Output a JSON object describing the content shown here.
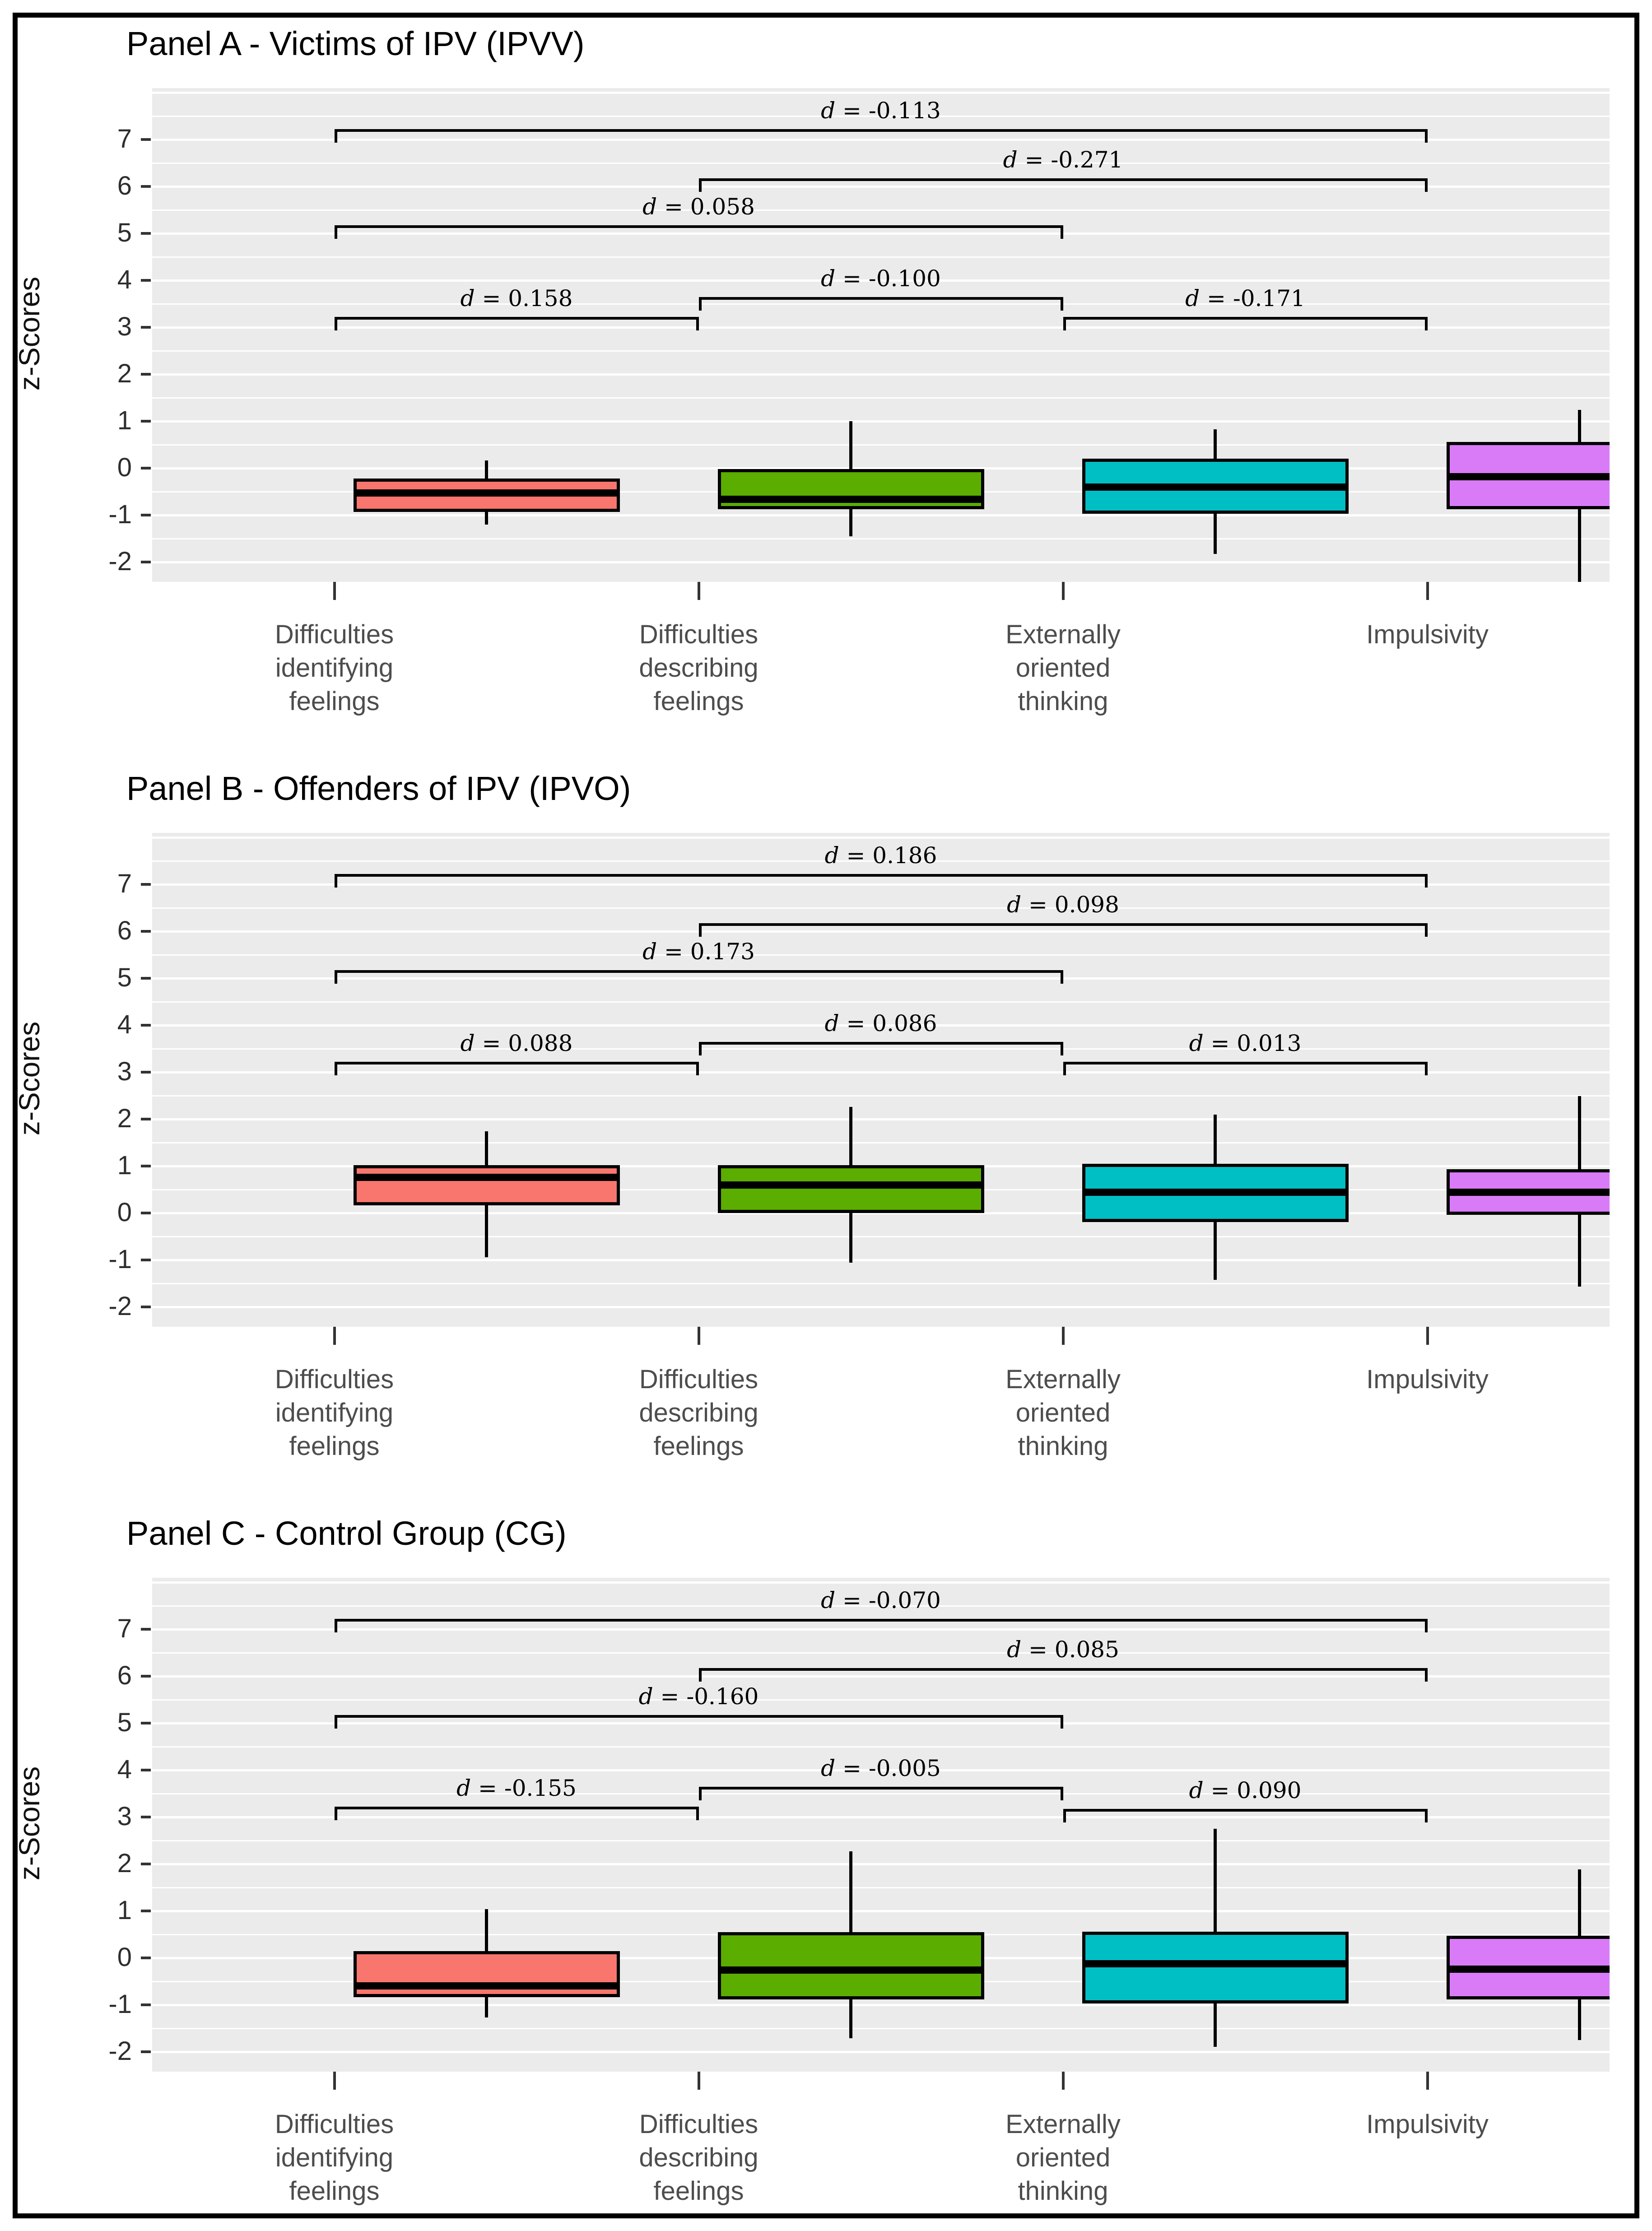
{
  "figure": {
    "background": "#ffffff",
    "border_color": "#000000",
    "panel_background": "#EBEBEB",
    "gridline_color": "#FFFFFF"
  },
  "chart_data": [
    {
      "type": "boxplot",
      "panel": "A",
      "title": "Panel A - Victims of IPV (IPVV)",
      "ylabel": "z-Scores",
      "ylim": [
        -2.42,
        8.1
      ],
      "yticks": [
        7,
        6,
        5,
        4,
        3,
        2,
        1,
        0,
        -1,
        -2
      ],
      "grid": "on",
      "categories": [
        [
          "Difficulties",
          "identifying",
          "feelings"
        ],
        [
          "Difficulties",
          "describing",
          "feelings"
        ],
        [
          "Externally",
          "oriented",
          "thinking"
        ],
        [
          "Impulsivity"
        ]
      ],
      "colors": [
        "#F8766D",
        "#5BAD00",
        "#00BFC4",
        "#D97BF7"
      ],
      "boxes": [
        {
          "category": "Difficulties identifying feelings",
          "color": "#F8766D",
          "whisker_low": -1.2,
          "q1": -0.93,
          "median": -0.53,
          "q3": -0.22,
          "whisker_high": 0.17
        },
        {
          "category": "Difficulties describing feelings",
          "color": "#5BAD00",
          "whisker_low": -1.45,
          "q1": -0.87,
          "median": -0.66,
          "q3": -0.02,
          "whisker_high": 1.0
        },
        {
          "category": "Externally oriented thinking",
          "color": "#00BFC4",
          "whisker_low": -1.82,
          "q1": -0.97,
          "median": -0.4,
          "q3": 0.21,
          "whisker_high": 0.83
        },
        {
          "category": "Impulsivity",
          "color": "#D97BF7",
          "whisker_low": -2.45,
          "q1": -0.87,
          "median": -0.18,
          "q3": 0.56,
          "whisker_high": 1.24
        }
      ],
      "comparisons": [
        {
          "pair": [
            0,
            3
          ],
          "y": 7.2,
          "label": "d = -0.113"
        },
        {
          "pair": [
            1,
            3
          ],
          "y": 6.15,
          "label": "d = -0.271"
        },
        {
          "pair": [
            0,
            2
          ],
          "y": 5.15,
          "label": "d = 0.058"
        },
        {
          "pair": [
            1,
            2
          ],
          "y": 3.62,
          "label": "d = -0.100"
        },
        {
          "pair": [
            0,
            1
          ],
          "y": 3.2,
          "label": "d = 0.158"
        },
        {
          "pair": [
            2,
            3
          ],
          "y": 3.2,
          "label": "d = -0.171"
        }
      ]
    },
    {
      "type": "boxplot",
      "panel": "B",
      "title": "Panel B - Offenders of IPV (IPVO)",
      "ylabel": "z-Scores",
      "ylim": [
        -2.42,
        8.1
      ],
      "yticks": [
        7,
        6,
        5,
        4,
        3,
        2,
        1,
        0,
        -1,
        -2
      ],
      "grid": "on",
      "categories": [
        [
          "Difficulties",
          "identifying",
          "feelings"
        ],
        [
          "Difficulties",
          "describing",
          "feelings"
        ],
        [
          "Externally",
          "oriented",
          "thinking"
        ],
        [
          "Impulsivity"
        ]
      ],
      "colors": [
        "#F8766D",
        "#5BAD00",
        "#00BFC4",
        "#D97BF7"
      ],
      "boxes": [
        {
          "category": "Difficulties identifying feelings",
          "color": "#F8766D",
          "whisker_low": -0.94,
          "q1": 0.17,
          "median": 0.76,
          "q3": 1.02,
          "whisker_high": 1.74
        },
        {
          "category": "Difficulties describing feelings",
          "color": "#5BAD00",
          "whisker_low": -1.05,
          "q1": 0.0,
          "median": 0.6,
          "q3": 1.02,
          "whisker_high": 2.26
        },
        {
          "category": "Externally oriented thinking",
          "color": "#00BFC4",
          "whisker_low": -1.42,
          "q1": -0.19,
          "median": 0.45,
          "q3": 1.05,
          "whisker_high": 2.1
        },
        {
          "category": "Impulsivity",
          "color": "#D97BF7",
          "whisker_low": -1.56,
          "q1": -0.04,
          "median": 0.45,
          "q3": 0.94,
          "whisker_high": 2.49
        }
      ],
      "comparisons": [
        {
          "pair": [
            0,
            3
          ],
          "y": 7.2,
          "label": "d = 0.186"
        },
        {
          "pair": [
            1,
            3
          ],
          "y": 6.15,
          "label": "d = 0.098"
        },
        {
          "pair": [
            0,
            2
          ],
          "y": 5.15,
          "label": "d = 0.173"
        },
        {
          "pair": [
            1,
            2
          ],
          "y": 3.62,
          "label": "d = 0.086"
        },
        {
          "pair": [
            0,
            1
          ],
          "y": 3.2,
          "label": "d = 0.088"
        },
        {
          "pair": [
            2,
            3
          ],
          "y": 3.2,
          "label": "d = 0.013"
        }
      ]
    },
    {
      "type": "boxplot",
      "panel": "C",
      "title": "Panel C - Control Group (CG)",
      "ylabel": "z-Scores",
      "ylim": [
        -2.42,
        8.1
      ],
      "yticks": [
        7,
        6,
        5,
        4,
        3,
        2,
        1,
        0,
        -1,
        -2
      ],
      "grid": "on",
      "categories": [
        [
          "Difficulties",
          "identifying",
          "feelings"
        ],
        [
          "Difficulties",
          "describing",
          "feelings"
        ],
        [
          "Externally",
          "oriented",
          "thinking"
        ],
        [
          "Impulsivity"
        ]
      ],
      "colors": [
        "#F8766D",
        "#5BAD00",
        "#00BFC4",
        "#D97BF7"
      ],
      "boxes": [
        {
          "category": "Difficulties identifying feelings",
          "color": "#F8766D",
          "whisker_low": -1.27,
          "q1": -0.83,
          "median": -0.59,
          "q3": 0.15,
          "whisker_high": 1.04
        },
        {
          "category": "Difficulties describing feelings",
          "color": "#5BAD00",
          "whisker_low": -1.71,
          "q1": -0.88,
          "median": -0.26,
          "q3": 0.55,
          "whisker_high": 2.27
        },
        {
          "category": "Externally oriented thinking",
          "color": "#00BFC4",
          "whisker_low": -1.89,
          "q1": -0.97,
          "median": -0.12,
          "q3": 0.56,
          "whisker_high": 2.75
        },
        {
          "category": "Impulsivity",
          "color": "#D97BF7",
          "whisker_low": -1.75,
          "q1": -0.88,
          "median": -0.24,
          "q3": 0.47,
          "whisker_high": 1.89
        }
      ],
      "comparisons": [
        {
          "pair": [
            0,
            3
          ],
          "y": 7.2,
          "label": "d = -0.070"
        },
        {
          "pair": [
            1,
            3
          ],
          "y": 6.15,
          "label": "d = 0.085"
        },
        {
          "pair": [
            0,
            2
          ],
          "y": 5.15,
          "label": "d = -0.160"
        },
        {
          "pair": [
            1,
            2
          ],
          "y": 3.62,
          "label": "d = -0.005"
        },
        {
          "pair": [
            0,
            1
          ],
          "y": 3.2,
          "label": "d = -0.155"
        },
        {
          "pair": [
            2,
            3
          ],
          "y": 3.15,
          "label": "d = 0.090"
        }
      ]
    }
  ]
}
